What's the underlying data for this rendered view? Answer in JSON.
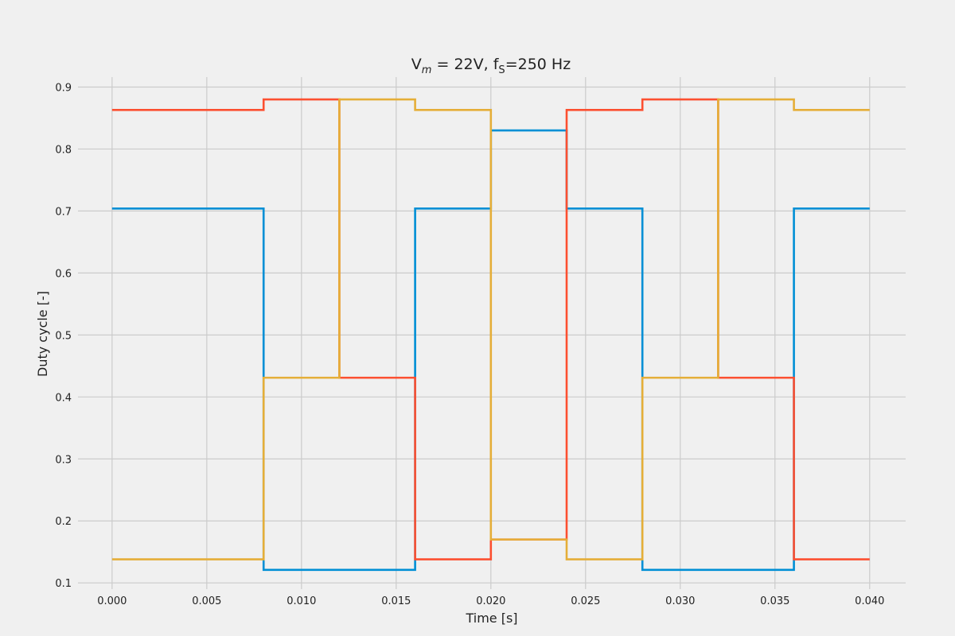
{
  "chart_data": {
    "type": "line",
    "title": "V_m = 22V, f_S=250 Hz",
    "title_parts": {
      "v": "V",
      "m_sub": "m",
      "eq": " = 22V, f",
      "s_sub": "S",
      "rest": "=250 Hz"
    },
    "xlabel": "Time [s]",
    "ylabel": "Duty cycle [-]",
    "xlim": [
      -0.0018,
      0.0419
    ],
    "ylim": [
      0.09,
      0.916
    ],
    "xticks": [
      0.0,
      0.005,
      0.01,
      0.015,
      0.02,
      0.025,
      0.03,
      0.035,
      0.04
    ],
    "xtick_labels": [
      "0.000",
      "0.005",
      "0.010",
      "0.015",
      "0.020",
      "0.025",
      "0.030",
      "0.035",
      "0.040"
    ],
    "yticks": [
      0.1,
      0.2,
      0.3,
      0.4,
      0.5,
      0.6,
      0.7,
      0.8,
      0.9
    ],
    "ytick_labels": [
      "0.1",
      "0.2",
      "0.3",
      "0.4",
      "0.5",
      "0.6",
      "0.7",
      "0.8",
      "0.9"
    ],
    "grid": true,
    "step": "post",
    "x": [
      0.0,
      0.004,
      0.008,
      0.012,
      0.016,
      0.02,
      0.024,
      0.028,
      0.032,
      0.036,
      0.04
    ],
    "series": [
      {
        "color": "#008fd5",
        "values": [
          0.704,
          0.704,
          0.121,
          0.121,
          0.704,
          0.83,
          0.704,
          0.121,
          0.121,
          0.704,
          0.704
        ]
      },
      {
        "color": "#fc4f30",
        "values": [
          0.863,
          0.863,
          0.88,
          0.431,
          0.138,
          0.17,
          0.863,
          0.88,
          0.431,
          0.138,
          0.138
        ]
      },
      {
        "color": "#e5ae38",
        "values": [
          0.138,
          0.138,
          0.431,
          0.88,
          0.863,
          0.17,
          0.138,
          0.431,
          0.88,
          0.863,
          0.863
        ]
      }
    ]
  }
}
